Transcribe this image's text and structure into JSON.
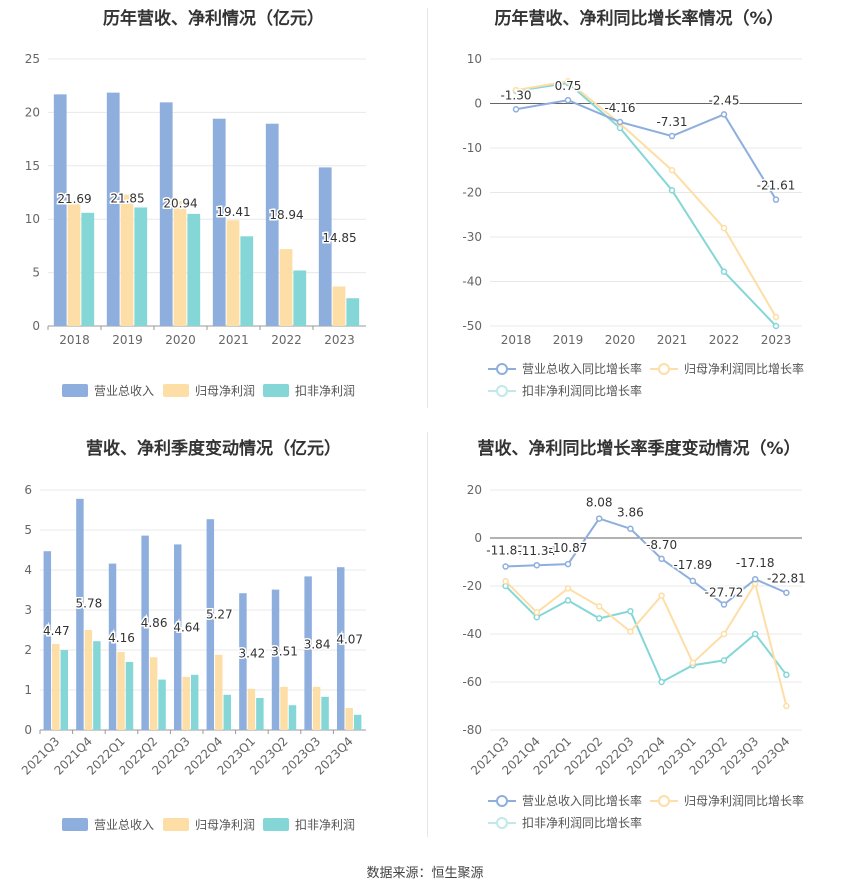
{
  "footer": "数据来源：恒生聚源",
  "colors": {
    "revenue": "#8eaedd",
    "parent": "#fddea6",
    "deducted": "#85d7d7"
  },
  "charts": {
    "annual_bar": {
      "title": "历年营收、净利情况（亿元）",
      "legend": [
        "营业总收入",
        "归母净利润",
        "扣非净利润"
      ]
    },
    "annual_line": {
      "title": "历年营收、净利同比增长率情况（%）",
      "legend": [
        "营业总收入同比增长率",
        "归母净利润同比增长率",
        "扣非净利润同比增长率"
      ]
    },
    "quarter_bar": {
      "title": "营收、净利季度变动情况（亿元）",
      "legend": [
        "营业总收入",
        "归母净利润",
        "扣非净利润"
      ]
    },
    "quarter_line": {
      "title": "营收、净利同比增长率季度变动情况（%）",
      "legend": [
        "营业总收入同比增长率",
        "归母净利润同比增长率",
        "扣非净利润同比增长率"
      ]
    }
  },
  "chart_data": [
    {
      "type": "bar",
      "title": "历年营收、净利情况（亿元）",
      "categories": [
        "2018",
        "2019",
        "2020",
        "2021",
        "2022",
        "2023"
      ],
      "ylim": [
        0,
        25
      ],
      "yticks": [
        0,
        5,
        10,
        15,
        20,
        25
      ],
      "series": [
        {
          "name": "营业总收入",
          "values": [
            21.69,
            21.85,
            20.94,
            19.41,
            18.94,
            14.85
          ],
          "labels": [
            "21.69",
            "21.85",
            "20.94",
            "19.41",
            "18.94",
            "14.85"
          ]
        },
        {
          "name": "归母净利润",
          "values": [
            11.8,
            12.3,
            11.7,
            9.9,
            7.2,
            3.7
          ]
        },
        {
          "name": "扣非净利润",
          "values": [
            10.6,
            11.1,
            10.5,
            8.4,
            5.2,
            2.6
          ]
        }
      ]
    },
    {
      "type": "line",
      "title": "历年营收、净利同比增长率情况（%）",
      "categories": [
        "2018",
        "2019",
        "2020",
        "2021",
        "2022",
        "2023"
      ],
      "ylim": [
        -50,
        10
      ],
      "yticks": [
        10,
        0,
        -10,
        -20,
        -30,
        -40,
        -50
      ],
      "series": [
        {
          "name": "营业总收入同比增长率",
          "values": [
            -1.3,
            0.75,
            -4.16,
            -7.31,
            -2.45,
            -21.61
          ],
          "labels": [
            "-1.30",
            "0.75",
            "-4.16",
            "-7.31",
            "-2.45",
            "-21.61"
          ]
        },
        {
          "name": "归母净利润同比增长率",
          "values": [
            3.0,
            5.0,
            -4.5,
            -15.0,
            -28.0,
            -48.0
          ]
        },
        {
          "name": "扣非净利润同比增长率",
          "values": [
            2.8,
            4.6,
            -5.5,
            -19.5,
            -37.8,
            -50.0
          ]
        }
      ]
    },
    {
      "type": "bar",
      "title": "营收、净利季度变动情况（亿元）",
      "categories": [
        "2021Q3",
        "2021Q4",
        "2022Q1",
        "2022Q2",
        "2022Q3",
        "2022Q4",
        "2023Q1",
        "2023Q2",
        "2023Q3",
        "2023Q4"
      ],
      "ylim": [
        0,
        6
      ],
      "yticks": [
        0,
        1,
        2,
        3,
        4,
        5,
        6
      ],
      "series": [
        {
          "name": "营业总收入",
          "values": [
            4.47,
            5.78,
            4.16,
            4.86,
            4.64,
            5.27,
            3.42,
            3.51,
            3.84,
            4.07
          ],
          "labels": [
            "4.47",
            "5.78",
            "4.16",
            "4.86",
            "4.64",
            "5.27",
            "3.42",
            "3.51",
            "3.84",
            "4.07"
          ]
        },
        {
          "name": "归母净利润",
          "values": [
            2.15,
            2.5,
            1.95,
            1.82,
            1.33,
            1.88,
            1.03,
            1.08,
            1.08,
            0.55
          ]
        },
        {
          "name": "扣非净利润",
          "values": [
            2.0,
            2.22,
            1.7,
            1.26,
            1.38,
            0.88,
            0.8,
            0.62,
            0.83,
            0.38
          ]
        }
      ]
    },
    {
      "type": "line",
      "title": "营收、净利同比增长率季度变动情况（%）",
      "categories": [
        "2021Q3",
        "2021Q4",
        "2022Q1",
        "2022Q2",
        "2022Q3",
        "2022Q4",
        "2023Q1",
        "2023Q2",
        "2023Q3",
        "2023Q4"
      ],
      "ylim": [
        -80,
        20
      ],
      "yticks": [
        20,
        0,
        -20,
        -40,
        -60,
        -80
      ],
      "series": [
        {
          "name": "营业总收入同比增长率",
          "values": [
            -11.87,
            -11.34,
            -10.87,
            8.08,
            3.86,
            -8.7,
            -17.89,
            -27.72,
            -17.18,
            -22.81
          ],
          "labels": [
            "-11.87",
            "-11.34",
            "-10.87",
            "8.08",
            "3.86",
            "-8.70",
            "-17.89",
            "-27.72",
            "-17.18",
            "-22.81"
          ]
        },
        {
          "name": "归母净利润同比增长率",
          "values": [
            -18.0,
            -31.0,
            -21.0,
            -28.5,
            -39.0,
            -24.0,
            -52.0,
            -40.0,
            -19.0,
            -70.0
          ]
        },
        {
          "name": "扣非净利润同比增长率",
          "values": [
            -20.0,
            -33.0,
            -26.0,
            -33.5,
            -30.5,
            -60.0,
            -53.0,
            -51.0,
            -40.0,
            -57.0
          ]
        }
      ]
    }
  ]
}
